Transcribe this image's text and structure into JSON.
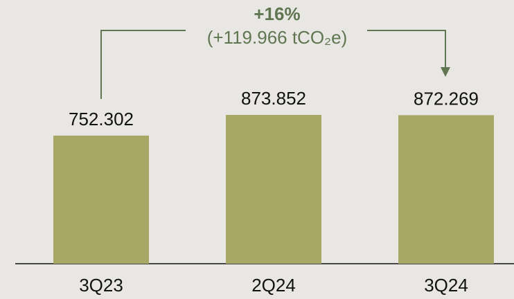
{
  "chart_data": {
    "type": "bar",
    "categories": [
      "3Q23",
      "2Q24",
      "3Q24"
    ],
    "values": [
      752.302,
      873.852,
      872.269
    ],
    "color": "#a8a865",
    "annotations": [
      {
        "text": "+16%"
      },
      {
        "text": "(+119.966 tCO₂e)"
      }
    ]
  }
}
